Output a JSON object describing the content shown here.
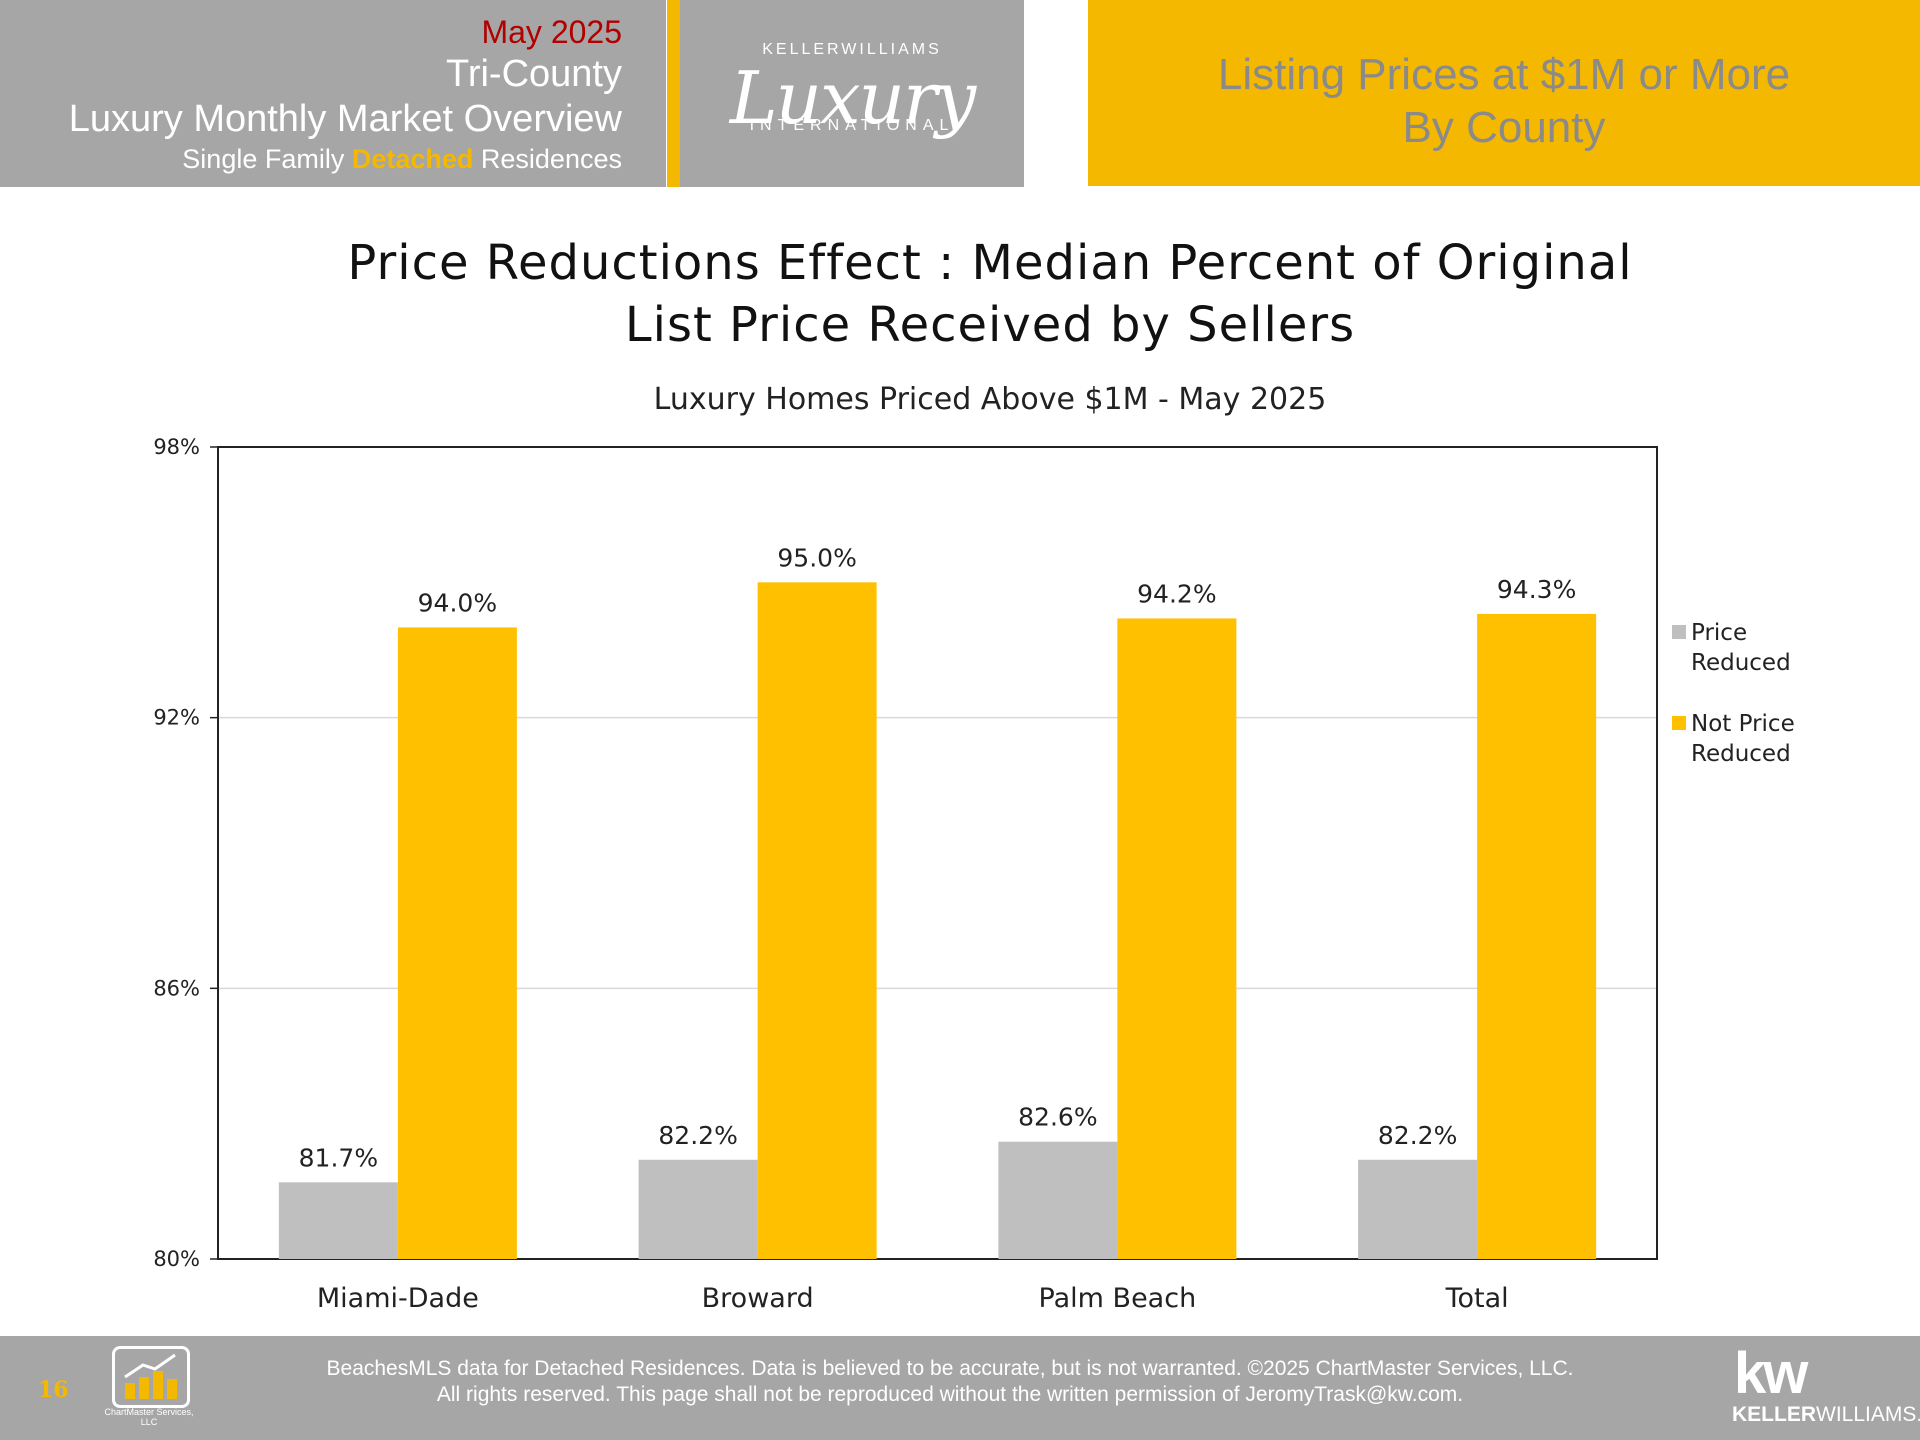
{
  "header": {
    "date": "May 2025",
    "region": "Tri-County",
    "title": "Luxury Monthly Market Overview",
    "sub_prefix": "Single Family ",
    "sub_accent": "Detached",
    "sub_suffix": " Residences",
    "logo_top": "KELLERWILLIAMS",
    "logo_main": "Luxury",
    "logo_bottom": "INTERNATIONAL",
    "right_title_line1": "Listing Prices at $1M or More",
    "right_title_line2": "By County"
  },
  "colors": {
    "gray": "#bfbfbf",
    "gold": "#ffc000",
    "header_gray": "#a6a6a6",
    "header_gold": "#f5b800",
    "date_red": "#b00000"
  },
  "chart_data": {
    "type": "bar",
    "title_line1": "Price Reductions Effect : Median Percent of Original",
    "title_line2": "List Price Received by Sellers",
    "subtitle": "Luxury Homes Priced Above $1M - May 2025",
    "categories": [
      "Miami-Dade",
      "Broward",
      "Palm Beach",
      "Total"
    ],
    "series": [
      {
        "name": "Price Reduced",
        "values": [
          81.7,
          82.2,
          82.6,
          82.2
        ],
        "labels": [
          "81.7%",
          "82.2%",
          "82.6%",
          "82.2%"
        ],
        "color": "#bfbfbf"
      },
      {
        "name": "Not Price Reduced",
        "values": [
          94.0,
          95.0,
          94.2,
          94.3
        ],
        "labels": [
          "94.0%",
          "95.0%",
          "94.2%",
          "94.3%"
        ],
        "color": "#ffc000"
      }
    ],
    "ylim": [
      80,
      98
    ],
    "yticks": [
      80,
      86,
      92,
      98
    ],
    "ytick_labels": [
      "80%",
      "86%",
      "92%",
      "98%"
    ],
    "grid": true,
    "legend": "right"
  },
  "footer": {
    "page_number": "16",
    "chartmaster_name": "ChartMaster Services, LLC",
    "line1": "BeachesMLS data for Detached Residences.  Data is believed to be accurate, but is not warranted.   ©2025  ChartMaster Services, LLC.",
    "line2": "All rights reserved. This page shall not be reproduced without the written permission of JeromyTrask@kw.com.",
    "kw_mark": "kw",
    "kw_bold": "KELLER",
    "kw_rest": "WILLIAMS."
  }
}
